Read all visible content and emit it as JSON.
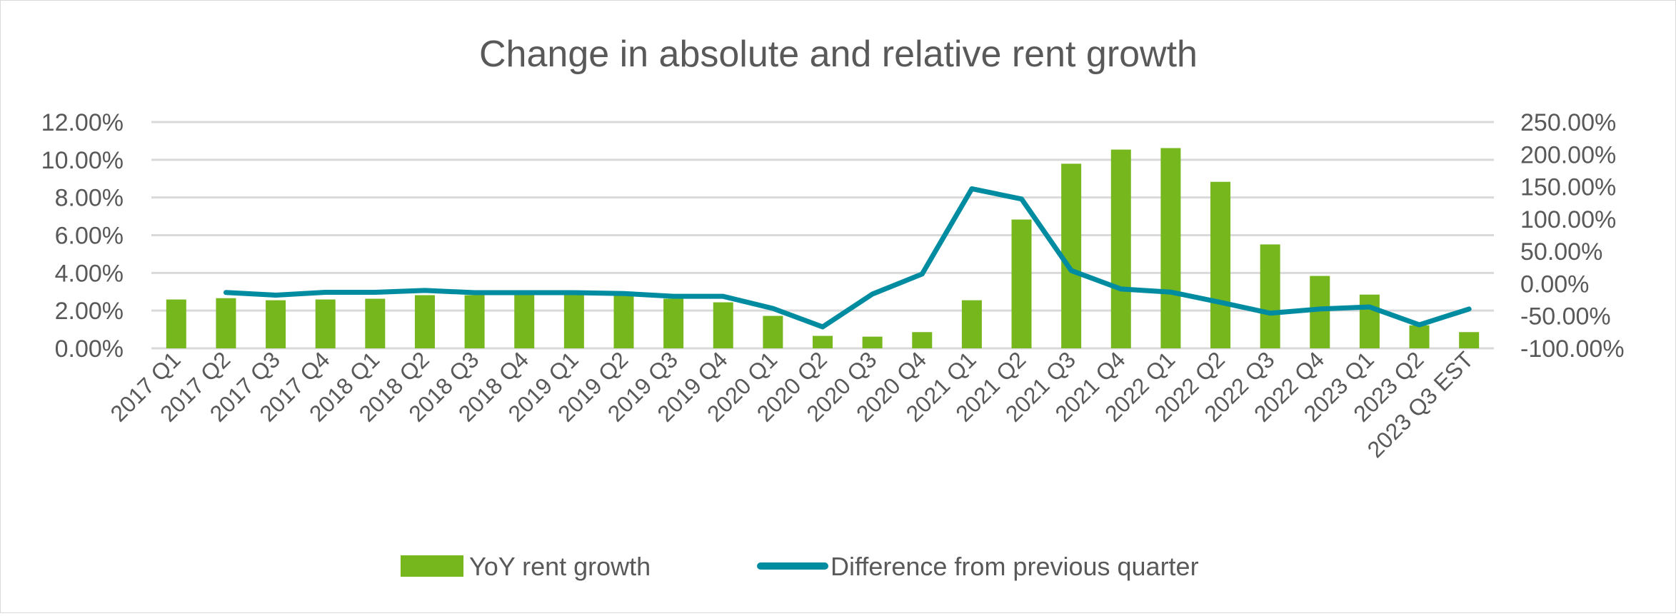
{
  "chart_data": {
    "type": "bar+line",
    "title": "Change in absolute and relative rent growth",
    "categories": [
      "2017 Q1",
      "2017 Q2",
      "2017 Q3",
      "2017 Q4",
      "2018 Q1",
      "2018 Q2",
      "2018 Q3",
      "2018 Q4",
      "2019 Q1",
      "2019 Q2",
      "2019 Q3",
      "2019 Q4",
      "2020 Q1",
      "2020 Q2",
      "2020 Q3",
      "2020 Q4",
      "2021 Q1",
      "2021 Q2",
      "2021 Q3",
      "2021 Q4",
      "2022 Q1",
      "2022 Q2",
      "2022 Q3",
      "2022 Q4",
      "2023 Q1",
      "2023 Q2",
      "2023 Q3 EST"
    ],
    "series": [
      {
        "name": "YoY rent growth",
        "type": "bar",
        "axis": "left",
        "color": "#76B71E",
        "values": [
          2.59,
          2.66,
          2.55,
          2.59,
          2.63,
          2.82,
          2.82,
          2.82,
          2.85,
          2.82,
          2.63,
          2.44,
          1.72,
          0.66,
          0.62,
          0.86,
          2.55,
          6.83,
          9.79,
          10.54,
          10.62,
          8.83,
          5.51,
          3.84,
          2.85,
          1.22,
          0.86
        ]
      },
      {
        "name": "Difference from previous quarter",
        "type": "line",
        "axis": "right",
        "color": "#008CA0",
        "values": [
          null,
          -13.6,
          -17.7,
          -13.3,
          -13.3,
          -10.4,
          -13.9,
          -13.9,
          -13.9,
          -15.2,
          -19.6,
          -19.6,
          -38.3,
          -66.8,
          -16.1,
          14.9,
          146.8,
          131.0,
          20.3,
          -8.2,
          -13.0,
          -28.8,
          -45.6,
          -39.2,
          -36.0,
          -63.6,
          -39.2
        ]
      }
    ],
    "y_left": {
      "ylim": [
        0,
        12
      ],
      "ticks": [
        "0.00%",
        "2.00%",
        "4.00%",
        "6.00%",
        "8.00%",
        "10.00%",
        "12.00%"
      ]
    },
    "y_right": {
      "ylim": [
        -100,
        250
      ],
      "ticks": [
        "-100.00%",
        "-50.00%",
        "0.00%",
        "50.00%",
        "100.00%",
        "150.00%",
        "200.00%",
        "250.00%"
      ]
    },
    "grid": true,
    "legend": "bottom"
  }
}
